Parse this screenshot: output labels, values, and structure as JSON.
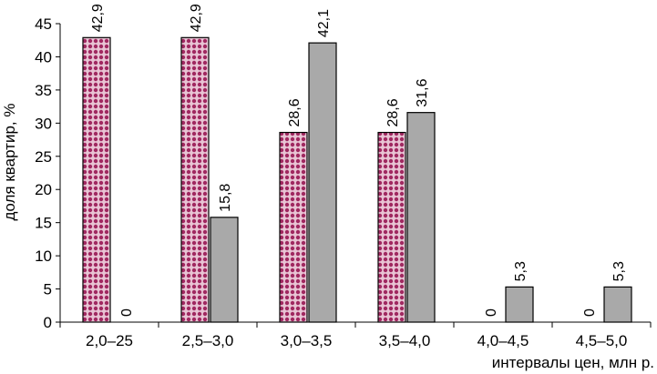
{
  "chart_data": {
    "type": "bar",
    "title": "",
    "xlabel": "интервалы цен, млн р.",
    "ylabel": "доля квартир, %",
    "categories": [
      "2,0–25",
      "2,5–3,0",
      "3,0–3,5",
      "3,5–4,0",
      "4,0–4,5",
      "4,5–5,0"
    ],
    "series": [
      {
        "values": [
          42.9,
          42.9,
          28.6,
          28.6,
          0,
          0
        ],
        "labels": [
          "42,9",
          "42,9",
          "28,6",
          "28,6",
          "0",
          "0"
        ],
        "fill": "pattern-dots",
        "color": "#b0306a"
      },
      {
        "values": [
          0,
          15.8,
          42.1,
          31.6,
          5.3,
          5.3
        ],
        "labels": [
          "0",
          "15,8",
          "42,1",
          "31,6",
          "5,3",
          "5,3"
        ],
        "fill": "solid",
        "color": "#a9a9a9"
      }
    ],
    "ylim": [
      0,
      45
    ],
    "yticks": [
      0,
      5,
      10,
      15,
      20,
      25,
      30,
      35,
      40,
      45
    ],
    "grid": false,
    "legend": "none"
  }
}
